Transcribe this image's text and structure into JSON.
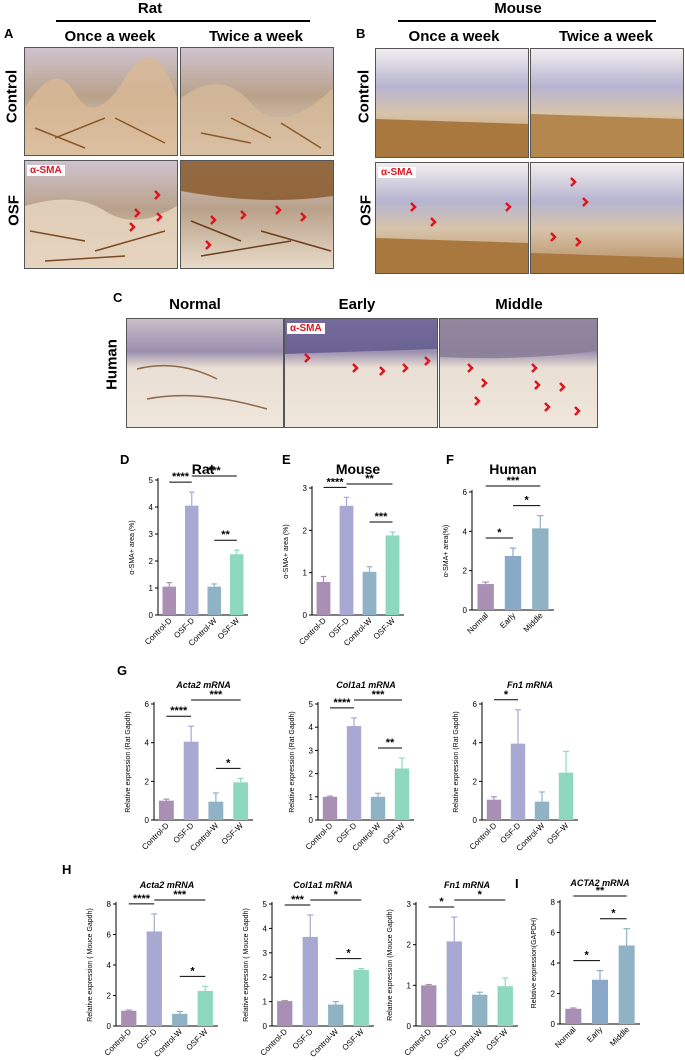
{
  "panels": {
    "A": "A",
    "B": "B",
    "C": "C",
    "D": "D",
    "E": "E",
    "F": "F",
    "G": "G",
    "H": "H",
    "I": "I"
  },
  "top": {
    "rat_title": "Rat",
    "mouse_title": "Mouse",
    "once": "Once a week",
    "twice": "Twice a week",
    "control": "Control",
    "osf": "OSF",
    "stain": "α-SMA"
  },
  "human_row": {
    "species": "Human",
    "normal": "Normal",
    "early": "Early",
    "middle": "Middle",
    "stain": "α-SMA"
  },
  "colors": {
    "purple": "#a98fb3",
    "lavender": "#a8a8d2",
    "steel": "#8fb3c4",
    "teal": "#8ed8c0",
    "mid": "#8aa9c8",
    "arrow": "#e0141e"
  },
  "chart_data": [
    {
      "id": "D",
      "type": "bar",
      "title": "Rat",
      "ylabel": "α-SMA+ area (%)",
      "categories": [
        "Control-D",
        "OSF-D",
        "Control-W",
        "OSF-W"
      ],
      "values": [
        1.05,
        4.05,
        1.05,
        2.25
      ],
      "errors": [
        0.15,
        0.5,
        0.1,
        0.15
      ],
      "ylim": [
        0,
        5
      ],
      "yticks": [
        0,
        1,
        2,
        3,
        4,
        5
      ],
      "significance": [
        {
          "from": 0,
          "to": 1,
          "label": "****"
        },
        {
          "from": 2,
          "to": 3,
          "label": "**"
        },
        {
          "from": 1,
          "to": 3,
          "label": "***"
        }
      ]
    },
    {
      "id": "E",
      "type": "bar",
      "title": "Mouse",
      "ylabel": "α-SMA+ area (%)",
      "categories": [
        "Control-D",
        "OSF-D",
        "Control-W",
        "OSF-W"
      ],
      "values": [
        0.78,
        2.58,
        1.02,
        1.88
      ],
      "errors": [
        0.13,
        0.2,
        0.12,
        0.08
      ],
      "ylim": [
        0,
        3
      ],
      "yticks": [
        0,
        1,
        2,
        3
      ],
      "significance": [
        {
          "from": 0,
          "to": 1,
          "label": "****"
        },
        {
          "from": 2,
          "to": 3,
          "label": "***"
        },
        {
          "from": 1,
          "to": 3,
          "label": "**"
        }
      ]
    },
    {
      "id": "F",
      "type": "bar",
      "title": "Human",
      "ylabel": "α-SMA+ area(%)",
      "categories": [
        "Normal",
        "Early",
        "Middle"
      ],
      "values": [
        1.32,
        2.75,
        4.15
      ],
      "errors": [
        0.1,
        0.4,
        0.65
      ],
      "ylim": [
        0,
        6
      ],
      "yticks": [
        0,
        2,
        4,
        6
      ],
      "significance": [
        {
          "from": 0,
          "to": 1,
          "label": "*"
        },
        {
          "from": 1,
          "to": 2,
          "label": "*"
        },
        {
          "from": 0,
          "to": 2,
          "label": "***"
        }
      ]
    },
    {
      "id": "G1",
      "type": "bar",
      "title": "Acta2 mRNA",
      "ylabel": "Relative expression (Rat Gapdh)",
      "categories": [
        "Control-D",
        "OSF-D",
        "Control-W",
        "OSF-W"
      ],
      "values": [
        1.0,
        4.05,
        0.95,
        1.95
      ],
      "errors": [
        0.08,
        0.8,
        0.45,
        0.2
      ],
      "ylim": [
        0,
        6
      ],
      "yticks": [
        0,
        2,
        4,
        6
      ],
      "significance": [
        {
          "from": 0,
          "to": 1,
          "label": "****"
        },
        {
          "from": 2,
          "to": 3,
          "label": "*"
        },
        {
          "from": 1,
          "to": 3,
          "label": "***"
        }
      ]
    },
    {
      "id": "G2",
      "type": "bar",
      "title": "Col1a1 mRNA",
      "ylabel": "Relative expression (Rat Gapdh)",
      "categories": [
        "Control-D",
        "OSF-D",
        "Control-W",
        "OSF-W"
      ],
      "values": [
        1.0,
        4.05,
        1.0,
        2.22
      ],
      "errors": [
        0.03,
        0.35,
        0.15,
        0.45
      ],
      "ylim": [
        0,
        5
      ],
      "yticks": [
        0,
        1,
        2,
        3,
        4,
        5
      ],
      "significance": [
        {
          "from": 0,
          "to": 1,
          "label": "****"
        },
        {
          "from": 2,
          "to": 3,
          "label": "**"
        },
        {
          "from": 1,
          "to": 3,
          "label": "***"
        }
      ]
    },
    {
      "id": "G3",
      "type": "bar",
      "title": "Fn1 mRNA",
      "ylabel": "Relative expression (Rat Gapdh)",
      "categories": [
        "Control-D",
        "OSF-D",
        "Control-W",
        "OSF-W"
      ],
      "values": [
        1.05,
        3.95,
        0.95,
        2.45
      ],
      "errors": [
        0.15,
        1.75,
        0.5,
        1.1
      ],
      "ylim": [
        0,
        6
      ],
      "yticks": [
        0,
        2,
        4,
        6
      ],
      "significance": [
        {
          "from": 0,
          "to": 1,
          "label": "*"
        }
      ]
    },
    {
      "id": "H1",
      "type": "bar",
      "title": "Acta2 mRNA",
      "ylabel": "Relative expression ( Mouce Gapdh)",
      "categories": [
        "Control-D",
        "OSF-D",
        "Control-W",
        "OSF-W"
      ],
      "values": [
        1.0,
        6.2,
        0.8,
        2.3
      ],
      "errors": [
        0.04,
        1.15,
        0.15,
        0.3
      ],
      "ylim": [
        0,
        8
      ],
      "yticks": [
        0,
        2,
        4,
        6,
        8
      ],
      "significance": [
        {
          "from": 0,
          "to": 1,
          "label": "****"
        },
        {
          "from": 2,
          "to": 3,
          "label": "*"
        },
        {
          "from": 1,
          "to": 3,
          "label": "***"
        }
      ]
    },
    {
      "id": "H2",
      "type": "bar",
      "title": "Col1a1 mRNA",
      "ylabel": "Relative expression ( Mouce Gapdh)",
      "categories": [
        "Control-D",
        "OSF-D",
        "Control-W",
        "OSF-W"
      ],
      "values": [
        1.02,
        3.65,
        0.88,
        2.3
      ],
      "errors": [
        0.02,
        0.9,
        0.12,
        0.05
      ],
      "ylim": [
        0,
        5
      ],
      "yticks": [
        0,
        1,
        2,
        3,
        4,
        5
      ],
      "significance": [
        {
          "from": 0,
          "to": 1,
          "label": "***"
        },
        {
          "from": 2,
          "to": 3,
          "label": "*"
        },
        {
          "from": 1,
          "to": 3,
          "label": "*"
        }
      ]
    },
    {
      "id": "H3",
      "type": "bar",
      "title": "Fn1 mRNA",
      "ylabel": "Relative expression (Mouce Gapdh)",
      "categories": [
        "Control-D",
        "OSF-D",
        "Control-W",
        "OSF-W"
      ],
      "values": [
        1.0,
        2.08,
        0.77,
        0.98
      ],
      "errors": [
        0.02,
        0.6,
        0.06,
        0.2
      ],
      "ylim": [
        0,
        3
      ],
      "yticks": [
        0,
        1,
        2,
        3
      ],
      "significance": [
        {
          "from": 0,
          "to": 1,
          "label": "*"
        },
        {
          "from": 1,
          "to": 3,
          "label": "*"
        }
      ]
    },
    {
      "id": "I",
      "type": "bar",
      "title": "ACTA2 mRNA",
      "ylabel": "Relative expression(GAPDH)",
      "categories": [
        "Normal",
        "Early",
        "Middle"
      ],
      "values": [
        1.0,
        2.9,
        5.15
      ],
      "errors": [
        0.05,
        0.6,
        1.1
      ],
      "ylim": [
        0,
        8
      ],
      "yticks": [
        0,
        2,
        4,
        6,
        8
      ],
      "significance": [
        {
          "from": 0,
          "to": 1,
          "label": "*"
        },
        {
          "from": 1,
          "to": 2,
          "label": "*"
        },
        {
          "from": 0,
          "to": 2,
          "label": "**"
        }
      ]
    }
  ]
}
